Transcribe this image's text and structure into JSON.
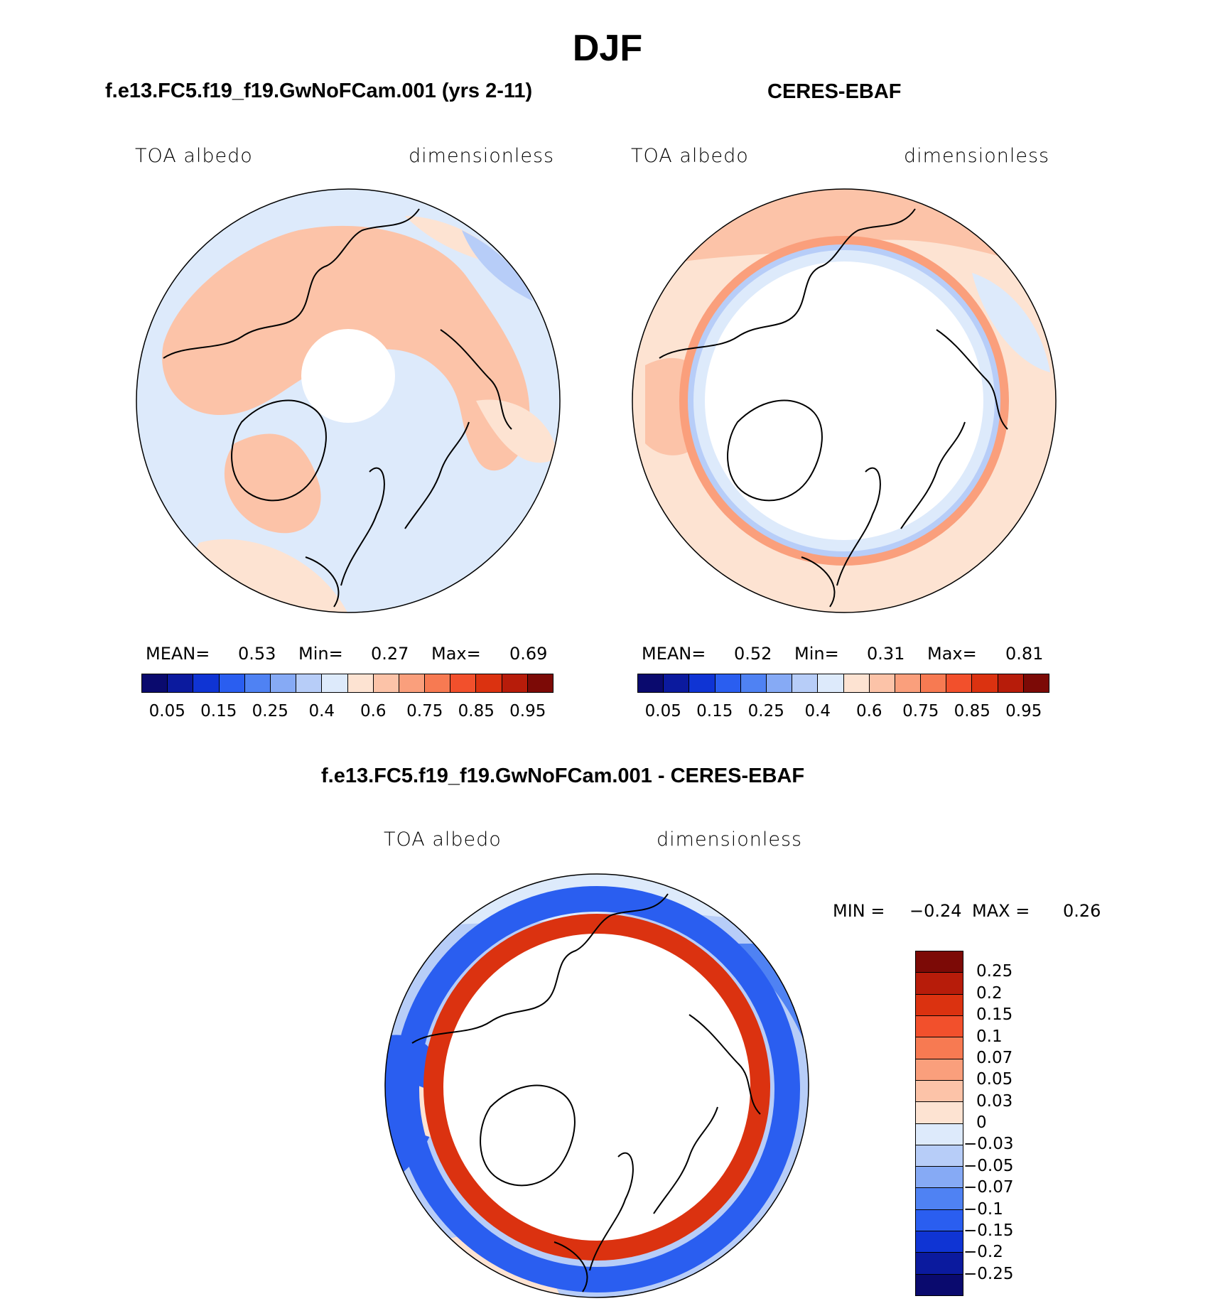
{
  "figure": {
    "title": "DJF"
  },
  "panels": {
    "model": {
      "title": "f.e13.FC5.f19_f19.GwNoFCam.001 (yrs 2-11)",
      "left_label": "TOA albedo",
      "right_label": "dimensionless",
      "mean_label": "MEAN=",
      "mean_value": "0.53",
      "min_label": "Min=",
      "min_value": "0.27",
      "max_label": "Max=",
      "max_value": "0.69"
    },
    "obs": {
      "title": "CERES-EBAF",
      "left_label": "TOA albedo",
      "right_label": "dimensionless",
      "mean_label": "MEAN=",
      "mean_value": "0.52",
      "min_label": "Min=",
      "min_value": "0.31",
      "max_label": "Max=",
      "max_value": "0.81"
    },
    "diff": {
      "title": "f.e13.FC5.f19_f19.GwNoFCam.001 - CERES-EBAF",
      "left_label": "TOA albedo",
      "right_label": "dimensionless",
      "min_label": "MIN =",
      "min_value": "−0.24",
      "max_label": "MAX =",
      "max_value": "0.26"
    }
  },
  "colorbars": {
    "albedo": {
      "colors": [
        "#0a0a6e",
        "#0b1a9e",
        "#0f34d4",
        "#2a5ef0",
        "#4f82f3",
        "#86aaf5",
        "#b7cdf8",
        "#ddeafb",
        "#fde3d2",
        "#fcc3a8",
        "#fa9f7c",
        "#f77a52",
        "#f2502c",
        "#db3210",
        "#b71c0a",
        "#7c0a06"
      ],
      "tick_labels": [
        "0.05",
        "0.15",
        "0.25",
        "0.4",
        "0.6",
        "0.75",
        "0.85",
        "0.95"
      ]
    },
    "difference": {
      "colors": [
        "#7c0a06",
        "#b71c0a",
        "#db3210",
        "#f2502c",
        "#f77a52",
        "#fa9f7c",
        "#fcc3a8",
        "#fde3d2",
        "#ddeafb",
        "#b7cdf8",
        "#86aaf5",
        "#4f82f3",
        "#2a5ef0",
        "#0f34d4",
        "#0b1a9e",
        "#0a0a6e"
      ],
      "tick_labels": [
        "0.25",
        "0.2",
        "0.15",
        "0.1",
        "0.07",
        "0.05",
        "0.03",
        "0",
        "−0.03",
        "−0.05",
        "−0.07",
        "−0.1",
        "−0.15",
        "−0.2",
        "−0.25"
      ]
    }
  }
}
